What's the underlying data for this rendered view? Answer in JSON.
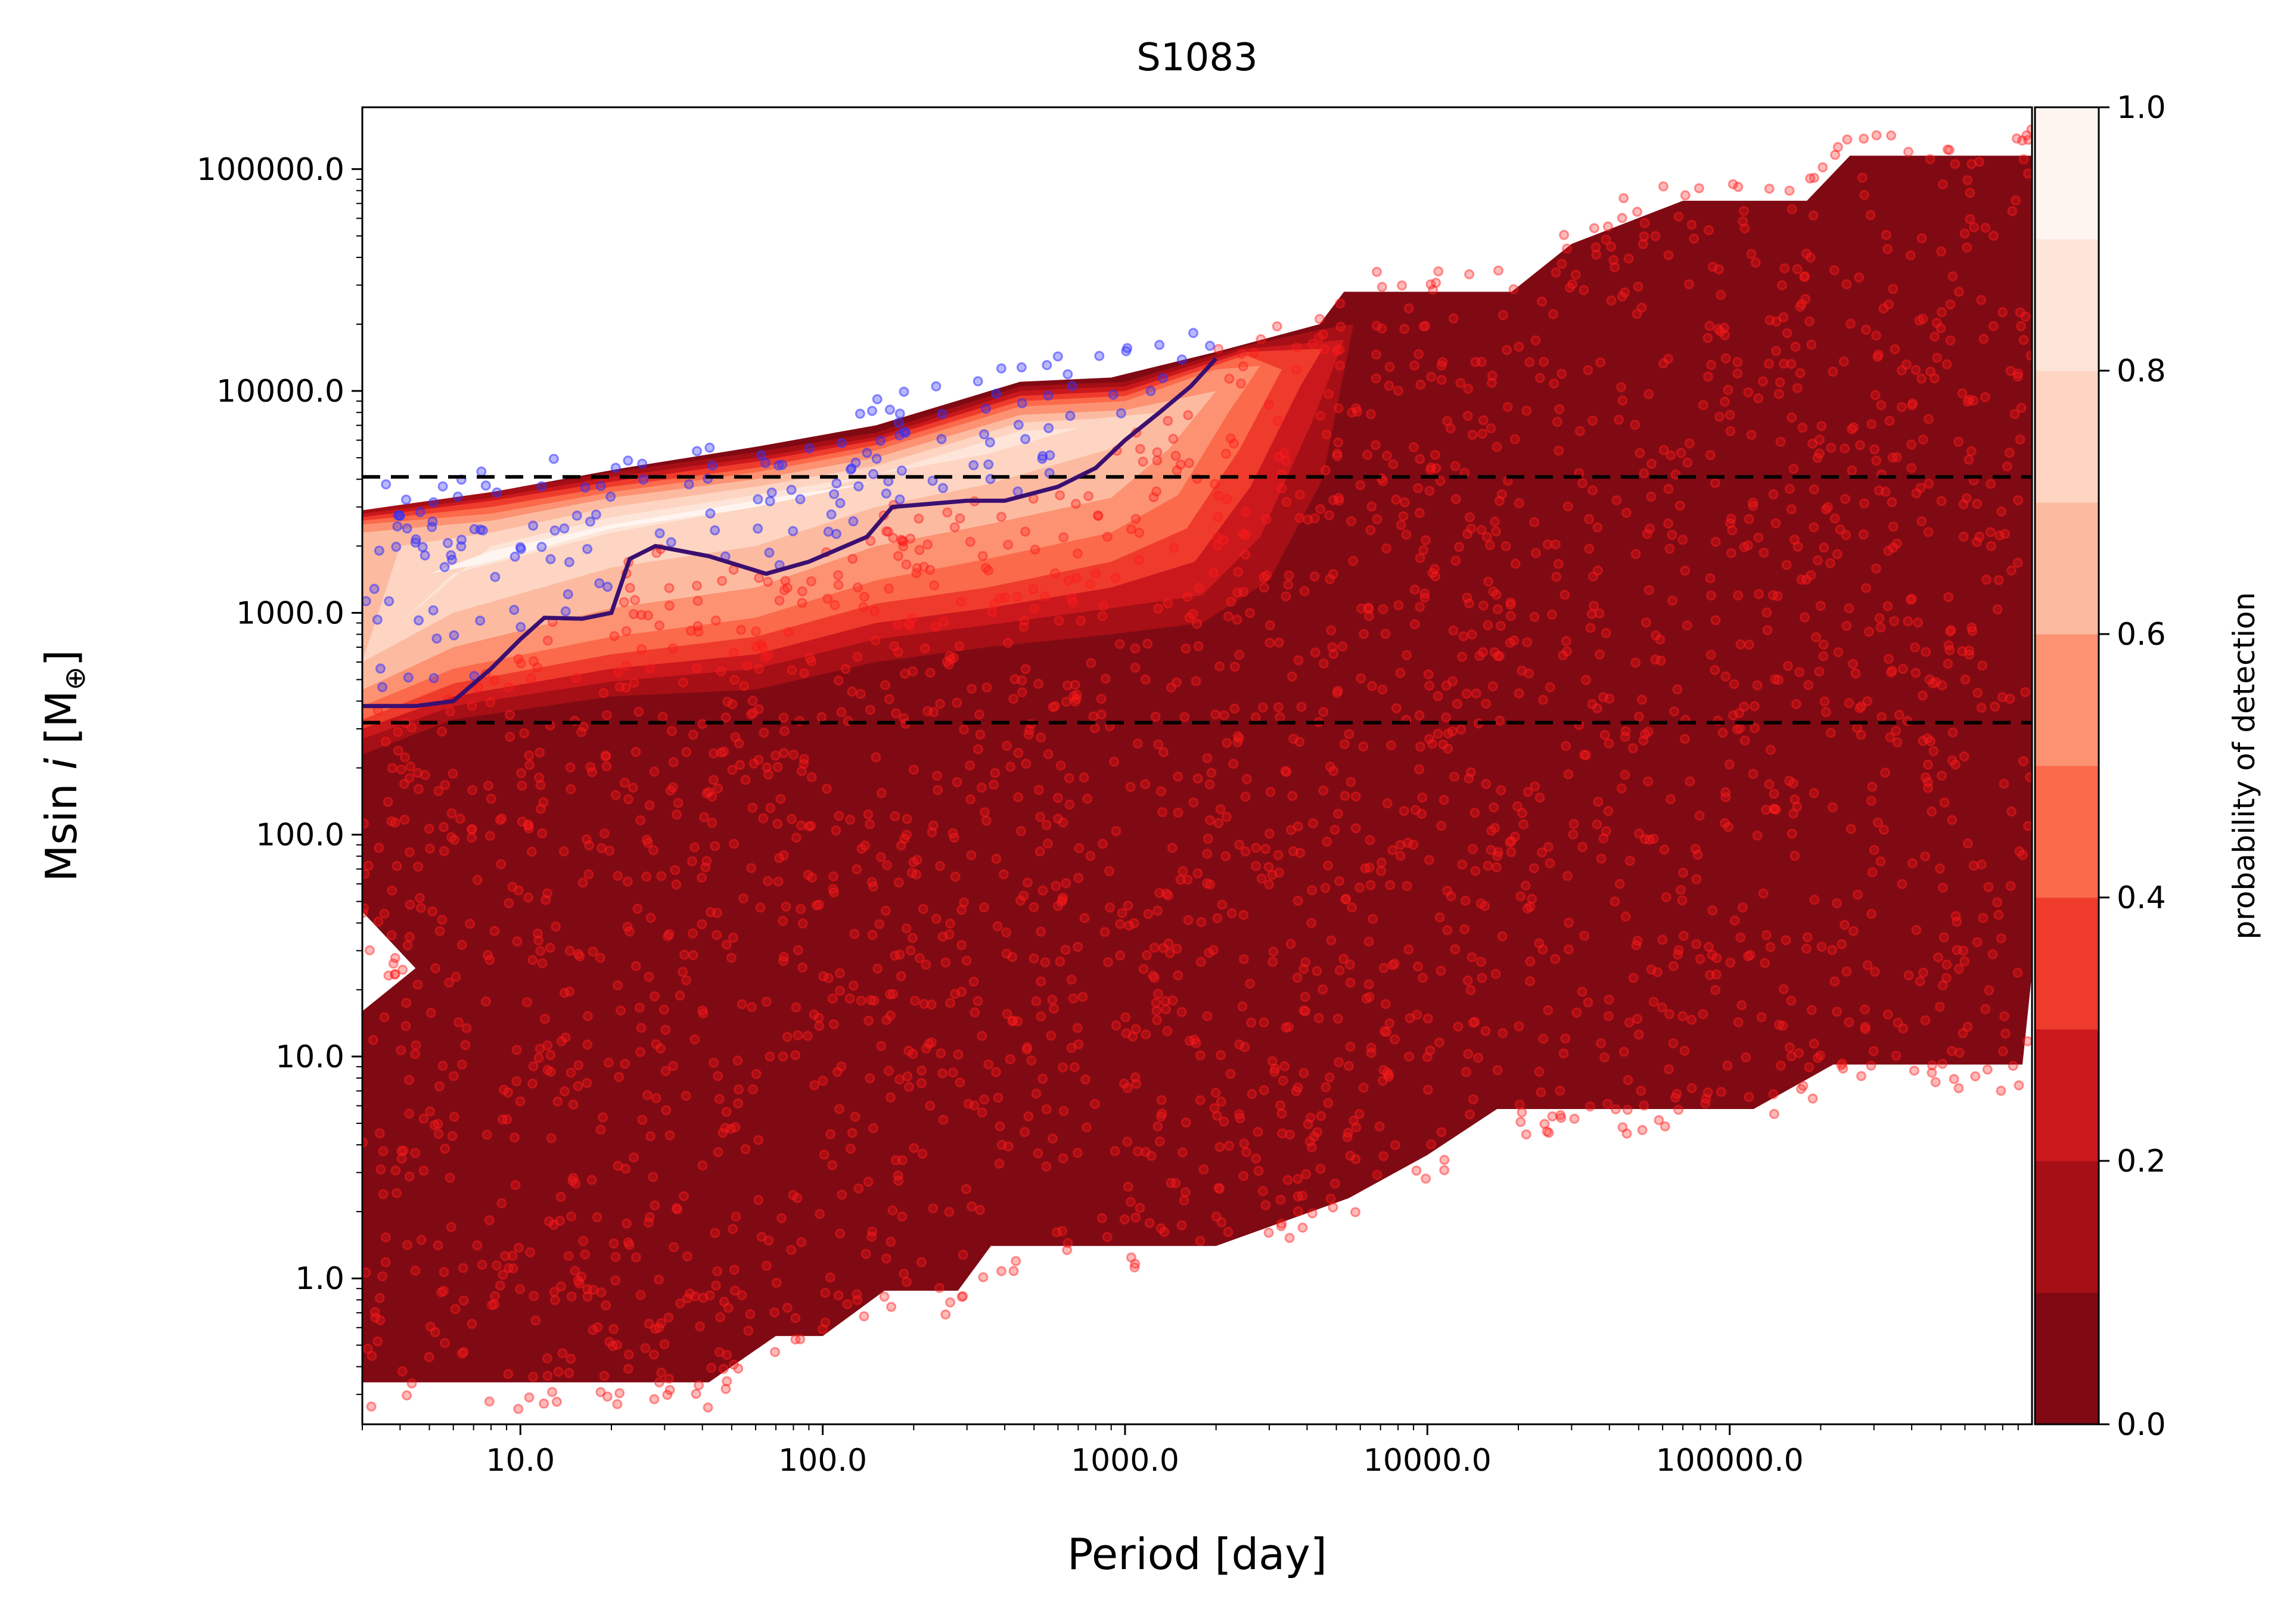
{
  "chart_data": {
    "type": "scatter",
    "title": "S1083",
    "xlabel": "Period [day]",
    "ylabel": {
      "prefix": "Msin ",
      "italic": "i",
      "suffix": " [M",
      "sub": "⊕",
      "close": "]"
    },
    "xscale": "log",
    "yscale": "log",
    "xlim": [
      3.0,
      1000000.0
    ],
    "ylim": [
      0.22,
      190000.0
    ],
    "xticks": [
      10,
      100,
      1000,
      10000,
      100000
    ],
    "xtick_labels": [
      "10.0",
      "100.0",
      "1000.0",
      "10000.0",
      "100000.0"
    ],
    "yticks": [
      1,
      10,
      100,
      1000,
      10000,
      100000
    ],
    "ytick_labels": [
      "1.0",
      "10.0",
      "100.0",
      "1000.0",
      "10000.0",
      "100000.0"
    ],
    "hlines": [
      4100,
      320
    ],
    "colorbar": {
      "label": "probability of detection",
      "range": [
        0.0,
        1.0
      ],
      "ticks": [
        0.0,
        0.2,
        0.4,
        0.6,
        0.8,
        1.0
      ],
      "tick_labels": [
        "0.0",
        "0.2",
        "0.4",
        "0.6",
        "0.8",
        "1.0"
      ],
      "levels": [
        "#800a13",
        "#a50f15",
        "#cb181d",
        "#ef3b2c",
        "#fb6a4a",
        "#fc9272",
        "#fcbba1",
        "#fdd5c2",
        "#fee5d9",
        "#fff5f0"
      ]
    },
    "contours": [
      {
        "level": 0,
        "points": [
          [
            3,
            0.34
          ],
          [
            42,
            0.34
          ],
          [
            70,
            0.55
          ],
          [
            100,
            0.55
          ],
          [
            160,
            0.88
          ],
          [
            280,
            0.88
          ],
          [
            360,
            1.4
          ],
          [
            2000,
            1.4
          ],
          [
            5500,
            2.3
          ],
          [
            10000,
            3.6
          ],
          [
            17000,
            5.8
          ],
          [
            120000,
            5.8
          ],
          [
            220000,
            9.2
          ],
          [
            930000,
            9.2
          ],
          [
            1000000,
            24
          ],
          [
            1000000,
            115000
          ],
          [
            250000,
            115000
          ],
          [
            180000,
            72000
          ],
          [
            70000,
            72000
          ],
          [
            30000,
            46000
          ],
          [
            19000,
            28000
          ],
          [
            5300,
            28000
          ],
          [
            4400,
            20000
          ],
          [
            2000,
            15000
          ],
          [
            900,
            11500
          ],
          [
            450,
            11000
          ],
          [
            150,
            7000
          ],
          [
            60,
            5600
          ],
          [
            22,
            4500
          ],
          [
            9,
            3600
          ],
          [
            5,
            3100
          ],
          [
            3,
            2900
          ],
          [
            3,
            45
          ],
          [
            4.5,
            25
          ],
          [
            3,
            16
          ]
        ]
      },
      {
        "level": 1,
        "points": [
          [
            3,
            230
          ],
          [
            6,
            330
          ],
          [
            20,
            420
          ],
          [
            60,
            450
          ],
          [
            150,
            600
          ],
          [
            350,
            700
          ],
          [
            900,
            800
          ],
          [
            1800,
            900
          ],
          [
            3000,
            1400
          ],
          [
            4500,
            4000
          ],
          [
            5700,
            20000
          ],
          [
            4500,
            19000
          ],
          [
            2500,
            16000
          ],
          [
            1000,
            11000
          ],
          [
            450,
            10500
          ],
          [
            150,
            6500
          ],
          [
            60,
            5300
          ],
          [
            20,
            4300
          ],
          [
            8,
            3500
          ],
          [
            3,
            2900
          ]
        ]
      },
      {
        "level": 2,
        "points": [
          [
            3,
            270
          ],
          [
            6,
            380
          ],
          [
            20,
            490
          ],
          [
            60,
            560
          ],
          [
            150,
            760
          ],
          [
            350,
            880
          ],
          [
            900,
            1050
          ],
          [
            1800,
            1200
          ],
          [
            2800,
            2200
          ],
          [
            4200,
            7500
          ],
          [
            5300,
            17000
          ],
          [
            2500,
            15500
          ],
          [
            1000,
            10500
          ],
          [
            450,
            10000
          ],
          [
            150,
            6200
          ],
          [
            60,
            5000
          ],
          [
            20,
            4100
          ],
          [
            8,
            3300
          ],
          [
            3,
            2800
          ]
        ]
      },
      {
        "level": 3,
        "points": [
          [
            3,
            300
          ],
          [
            6,
            420
          ],
          [
            20,
            560
          ],
          [
            60,
            650
          ],
          [
            150,
            900
          ],
          [
            350,
            1050
          ],
          [
            900,
            1300
          ],
          [
            1700,
            1700
          ],
          [
            2600,
            3700
          ],
          [
            3800,
            10500
          ],
          [
            4500,
            15500
          ],
          [
            2500,
            15000
          ],
          [
            1000,
            10000
          ],
          [
            450,
            9500
          ],
          [
            150,
            6000
          ],
          [
            60,
            4800
          ],
          [
            20,
            3900
          ],
          [
            8,
            3200
          ],
          [
            3,
            2700
          ]
        ]
      },
      {
        "level": 4,
        "points": [
          [
            3,
            330
          ],
          [
            6,
            480
          ],
          [
            20,
            650
          ],
          [
            60,
            780
          ],
          [
            150,
            1100
          ],
          [
            350,
            1300
          ],
          [
            900,
            1700
          ],
          [
            1600,
            2400
          ],
          [
            2400,
            5500
          ],
          [
            3300,
            12500
          ],
          [
            2500,
            14500
          ],
          [
            1000,
            9500
          ],
          [
            450,
            9000
          ],
          [
            150,
            5700
          ],
          [
            60,
            4500
          ],
          [
            20,
            3700
          ],
          [
            8,
            3000
          ],
          [
            3,
            2600
          ]
        ]
      },
      {
        "level": 5,
        "points": [
          [
            3,
            380
          ],
          [
            6,
            560
          ],
          [
            20,
            780
          ],
          [
            60,
            950
          ],
          [
            150,
            1400
          ],
          [
            350,
            1750
          ],
          [
            900,
            2300
          ],
          [
            1500,
            3400
          ],
          [
            2200,
            8000
          ],
          [
            2800,
            13000
          ],
          [
            2000,
            12500
          ],
          [
            1000,
            9000
          ],
          [
            450,
            8500
          ],
          [
            150,
            5400
          ],
          [
            60,
            4300
          ],
          [
            20,
            3500
          ],
          [
            8,
            2800
          ],
          [
            3,
            2500
          ]
        ]
      },
      {
        "level": 6,
        "points": [
          [
            3,
            450
          ],
          [
            6,
            700
          ],
          [
            20,
            1050
          ],
          [
            60,
            1300
          ],
          [
            150,
            2000
          ],
          [
            350,
            2500
          ],
          [
            900,
            3300
          ],
          [
            1400,
            5500
          ],
          [
            2000,
            10000
          ],
          [
            1000,
            8200
          ],
          [
            450,
            7800
          ],
          [
            150,
            5000
          ],
          [
            60,
            4000
          ],
          [
            20,
            3300
          ],
          [
            8,
            2600
          ],
          [
            3,
            2300
          ]
        ]
      },
      {
        "level": 7,
        "points": [
          [
            3,
            600
          ],
          [
            6,
            1000
          ],
          [
            20,
            1600
          ],
          [
            60,
            2000
          ],
          [
            150,
            3000
          ],
          [
            350,
            3800
          ],
          [
            900,
            5500
          ],
          [
            1300,
            8000
          ],
          [
            800,
            7500
          ],
          [
            450,
            7200
          ],
          [
            150,
            4600
          ],
          [
            60,
            3700
          ],
          [
            20,
            3000
          ],
          [
            8,
            2300
          ],
          [
            4,
            2000
          ]
        ]
      },
      {
        "level": 8,
        "points": [
          [
            4,
            900
          ],
          [
            6,
            1500
          ],
          [
            20,
            2300
          ],
          [
            60,
            3000
          ],
          [
            150,
            4200
          ],
          [
            350,
            5200
          ],
          [
            700,
            6800
          ],
          [
            450,
            6600
          ],
          [
            150,
            4200
          ],
          [
            60,
            3400
          ],
          [
            20,
            2700
          ],
          [
            8,
            2000
          ]
        ]
      },
      {
        "level": 9,
        "points": [
          [
            5,
            1500
          ],
          [
            8,
            1700
          ],
          [
            20,
            2400
          ],
          [
            60,
            3000
          ],
          [
            150,
            3900
          ],
          [
            60,
            3200
          ],
          [
            20,
            2500
          ],
          [
            8,
            1900
          ]
        ]
      }
    ],
    "detection_curve": {
      "color": "#3b0f70",
      "points": [
        [
          3,
          380
        ],
        [
          4.5,
          380
        ],
        [
          6,
          400
        ],
        [
          8,
          560
        ],
        [
          10,
          760
        ],
        [
          12,
          950
        ],
        [
          16,
          940
        ],
        [
          20,
          1000
        ],
        [
          23,
          1750
        ],
        [
          28,
          2000
        ],
        [
          42,
          1800
        ],
        [
          65,
          1500
        ],
        [
          90,
          1700
        ],
        [
          140,
          2200
        ],
        [
          170,
          3000
        ],
        [
          300,
          3200
        ],
        [
          400,
          3200
        ],
        [
          600,
          3700
        ],
        [
          800,
          4500
        ],
        [
          1000,
          6000
        ],
        [
          1300,
          8000
        ],
        [
          1650,
          10500
        ],
        [
          2000,
          14000
        ]
      ]
    },
    "dashed_line_color": "#000000",
    "scatter_colors": {
      "missed": "#ff1a1a",
      "detected": "#3333ff"
    },
    "scatter_missed_count": 2600,
    "scatter_detected_count": 170
  }
}
